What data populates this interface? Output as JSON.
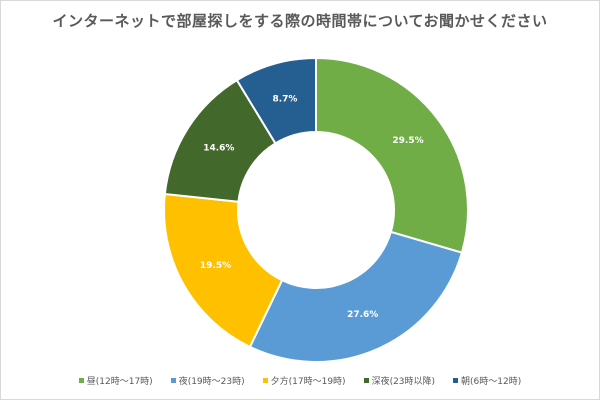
{
  "chart_data": {
    "type": "pie",
    "title": "インターネットで部屋探しをする際の時間帯についてお聞かせください",
    "categories": [
      "昼(12時〜17時)",
      "夜(19時〜23時)",
      "夕方(17時〜19時)",
      "深夜(23時以降)",
      "朝(6時〜12時)"
    ],
    "values": [
      29.5,
      27.6,
      19.5,
      14.6,
      8.7
    ],
    "labels": [
      "29.5%",
      "27.6%",
      "19.5%",
      "14.6%",
      "8.7%"
    ],
    "colors": [
      "#70ad47",
      "#5b9bd5",
      "#ffc000",
      "#43682b",
      "#255e91"
    ],
    "legend_position": "bottom",
    "donut": true
  }
}
